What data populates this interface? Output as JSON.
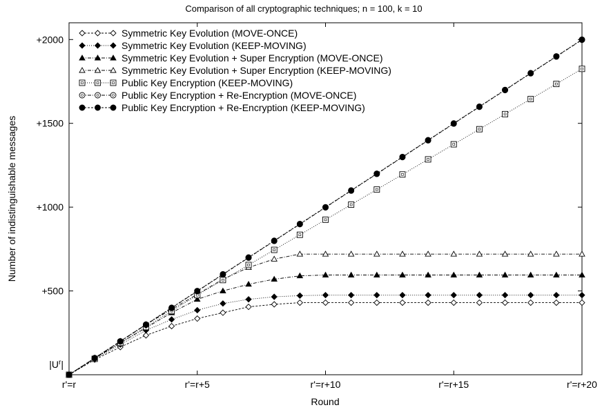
{
  "chart_data": {
    "type": "line",
    "title": "Comparison of all cryptographic techniques; n = 100, k = 10",
    "xlabel": "Round",
    "ylabel": "Number of indistinguishable messages",
    "xlim": [
      0,
      20
    ],
    "ylim": [
      0,
      2100
    ],
    "x": [
      0,
      1,
      2,
      3,
      4,
      5,
      6,
      7,
      8,
      9,
      10,
      11,
      12,
      13,
      14,
      15,
      16,
      17,
      18,
      19,
      20
    ],
    "x_ticks": [
      {
        "value": 0,
        "label": "r'=r"
      },
      {
        "value": 5,
        "label": "r'=r+5"
      },
      {
        "value": 10,
        "label": "r'=r+10"
      },
      {
        "value": 15,
        "label": "r'=r+15"
      },
      {
        "value": 20,
        "label": "r'=r+20"
      }
    ],
    "y_ticks": [
      {
        "value": 0,
        "label": "|U^r|"
      },
      {
        "value": 500,
        "label": "+500"
      },
      {
        "value": 1000,
        "label": "+1000"
      },
      {
        "value": 1500,
        "label": "+1500"
      },
      {
        "value": 2000,
        "label": "+2000"
      }
    ],
    "grid": false,
    "legend_position": "top-left",
    "series": [
      {
        "name": "Symmetric Key Evolution (MOVE-ONCE)",
        "marker": "diamond-open",
        "dash": "dashed",
        "values": [
          0,
          90,
          165,
          235,
          290,
          335,
          370,
          405,
          420,
          430,
          430,
          430,
          430,
          430,
          430,
          430,
          430,
          430,
          430,
          430,
          430
        ]
      },
      {
        "name": "Symmetric Key Evolution (KEEP-MOVING)",
        "marker": "diamond-filled",
        "dash": "dotted",
        "values": [
          0,
          95,
          180,
          265,
          330,
          385,
          425,
          450,
          465,
          472,
          475,
          475,
          475,
          475,
          475,
          475,
          475,
          475,
          475,
          475,
          475
        ]
      },
      {
        "name": "Symmetric Key Evolution + Super Encryption (MOVE-ONCE)",
        "marker": "triangle-filled",
        "dash": "dashdot",
        "values": [
          0,
          98,
          190,
          280,
          370,
          450,
          500,
          540,
          570,
          590,
          595,
          595,
          595,
          595,
          595,
          595,
          595,
          595,
          595,
          595,
          595
        ]
      },
      {
        "name": "Symmetric Key Evolution + Super Encryption (KEEP-MOVING)",
        "marker": "triangle-open",
        "dash": "dashdot",
        "values": [
          0,
          100,
          200,
          300,
          390,
          480,
          570,
          640,
          690,
          720,
          720,
          720,
          720,
          720,
          720,
          720,
          720,
          720,
          720,
          720,
          720
        ]
      },
      {
        "name": "Public Key Encryption (KEEP-MOVING)",
        "marker": "square-open",
        "dash": "dotted",
        "values": [
          0,
          95,
          190,
          285,
          380,
          475,
          565,
          655,
          745,
          835,
          925,
          1015,
          1105,
          1195,
          1285,
          1375,
          1465,
          1555,
          1645,
          1735,
          1825
        ]
      },
      {
        "name": "Public Key Encryption + Re-Encryption (MOVE-ONCE)",
        "marker": "circle-open",
        "dash": "dashdot",
        "values": [
          0,
          98,
          198,
          298,
          398,
          498,
          598,
          698,
          798,
          898,
          998,
          1098,
          1198,
          1298,
          1398,
          1498,
          1598,
          1698,
          1798,
          1898,
          1998
        ]
      },
      {
        "name": "Public Key Encryption + Re-Encryption (KEEP-MOVING)",
        "marker": "circle-filled",
        "dash": "dashed",
        "values": [
          0,
          100,
          200,
          300,
          400,
          500,
          600,
          700,
          800,
          900,
          1000,
          1100,
          1200,
          1300,
          1400,
          1500,
          1600,
          1700,
          1800,
          1900,
          2000
        ]
      }
    ]
  }
}
